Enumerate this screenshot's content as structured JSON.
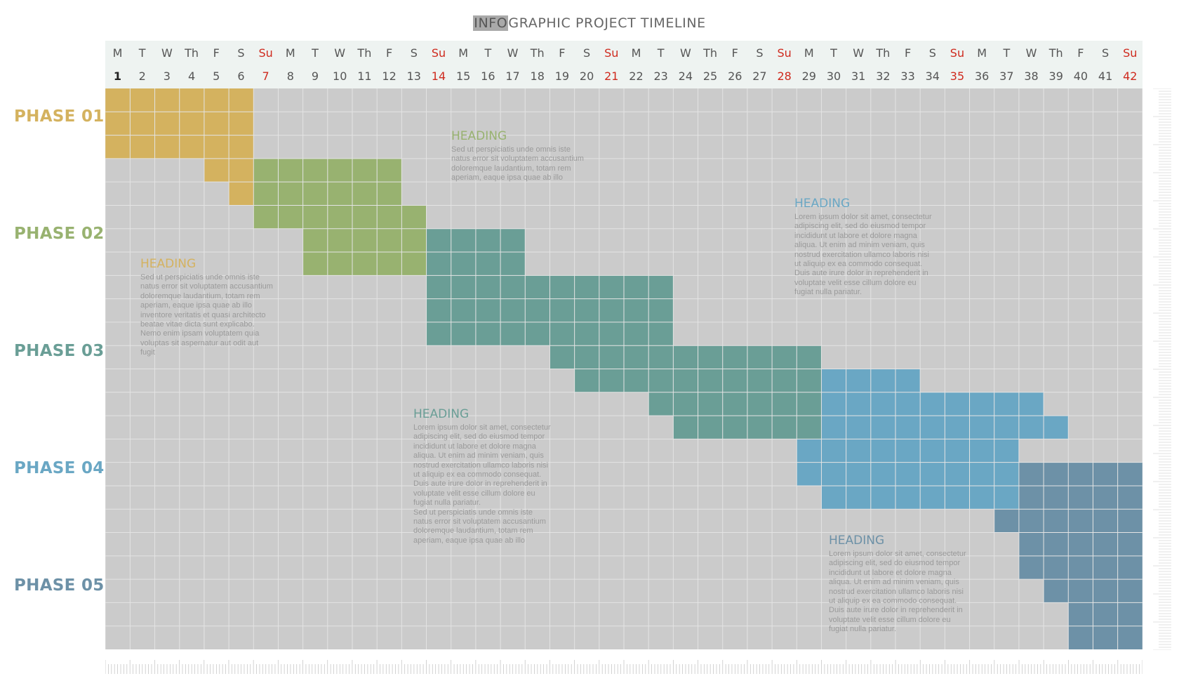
{
  "title": {
    "highlight": "INFO",
    "rest": "GRAPHIC  PROJECT  TIMELINE"
  },
  "days": {
    "names": [
      "M",
      "T",
      "W",
      "Th",
      "F",
      "S",
      "Su",
      "M",
      "T",
      "W",
      "Th",
      "F",
      "S",
      "Su",
      "M",
      "T",
      "W",
      "Th",
      "F",
      "S",
      "Su",
      "M",
      "T",
      "W",
      "Th",
      "F",
      "S",
      "Su",
      "M",
      "T",
      "W",
      "Th",
      "F",
      "S",
      "Su",
      "M",
      "T",
      "W",
      "Th",
      "F",
      "S",
      "Su"
    ],
    "numbers": [
      "1",
      "2",
      "3",
      "4",
      "5",
      "6",
      "7",
      "8",
      "9",
      "10",
      "11",
      "12",
      "13",
      "14",
      "15",
      "16",
      "17",
      "18",
      "19",
      "20",
      "21",
      "22",
      "23",
      "24",
      "25",
      "26",
      "27",
      "28",
      "29",
      "30",
      "31",
      "32",
      "33",
      "34",
      "35",
      "36",
      "37",
      "38",
      "39",
      "40",
      "41",
      "42"
    ]
  },
  "colors": {
    "grid_background": "#cbcbcb",
    "grid_lines": "#e4e4e4",
    "header_background": "#eef3f1",
    "sunday": "#cf2a1e",
    "phase_01": "#d4b25f",
    "phase_02": "#98b270",
    "phase_03": "#6a9e96",
    "phase_04": "#6aa7c4",
    "phase_05": "#6d91a7"
  },
  "phases": [
    {
      "label": "PHASE 01",
      "color": "#d4b25f",
      "bars": [
        {
          "row_start": 1,
          "row_end": 3,
          "day_start": 1,
          "day_end": 6
        },
        {
          "row_start": 4,
          "row_end": 4,
          "day_start": 5,
          "day_end": 6
        },
        {
          "row_start": 5,
          "row_end": 5,
          "day_start": 6,
          "day_end": 6
        }
      ]
    },
    {
      "label": "PHASE 02",
      "color": "#98b270",
      "bars": [
        {
          "row_start": 4,
          "row_end": 5,
          "day_start": 7,
          "day_end": 12
        },
        {
          "row_start": 6,
          "row_end": 6,
          "day_start": 7,
          "day_end": 13
        },
        {
          "row_start": 7,
          "row_end": 8,
          "day_start": 9,
          "day_end": 13
        }
      ]
    },
    {
      "label": "PHASE 03",
      "color": "#6a9e96",
      "bars": [
        {
          "row_start": 7,
          "row_end": 8,
          "day_start": 14,
          "day_end": 17
        },
        {
          "row_start": 9,
          "row_end": 11,
          "day_start": 14,
          "day_end": 23
        },
        {
          "row_start": 12,
          "row_end": 12,
          "day_start": 19,
          "day_end": 29
        },
        {
          "row_start": 13,
          "row_end": 13,
          "day_start": 20,
          "day_end": 29
        },
        {
          "row_start": 14,
          "row_end": 14,
          "day_start": 23,
          "day_end": 29
        },
        {
          "row_start": 15,
          "row_end": 15,
          "day_start": 24,
          "day_end": 29
        }
      ]
    },
    {
      "label": "PHASE 04",
      "color": "#6aa7c4",
      "bars": [
        {
          "row_start": 13,
          "row_end": 13,
          "day_start": 30,
          "day_end": 33
        },
        {
          "row_start": 14,
          "row_end": 14,
          "day_start": 30,
          "day_end": 38
        },
        {
          "row_start": 15,
          "row_end": 15,
          "day_start": 30,
          "day_end": 39
        },
        {
          "row_start": 16,
          "row_end": 17,
          "day_start": 29,
          "day_end": 37
        },
        {
          "row_start": 18,
          "row_end": 18,
          "day_start": 30,
          "day_end": 37
        }
      ]
    },
    {
      "label": "PHASE 05",
      "color": "#6d91a7",
      "bars": [
        {
          "row_start": 17,
          "row_end": 18,
          "day_start": 38,
          "day_end": 42
        },
        {
          "row_start": 19,
          "row_end": 19,
          "day_start": 37,
          "day_end": 42
        },
        {
          "row_start": 20,
          "row_end": 21,
          "day_start": 38,
          "day_end": 42
        },
        {
          "row_start": 22,
          "row_end": 22,
          "day_start": 39,
          "day_end": 42
        },
        {
          "row_start": 23,
          "row_end": 24,
          "day_start": 40,
          "day_end": 42
        }
      ]
    }
  ],
  "notes": [
    {
      "heading": "HEADING",
      "color": "#98b270",
      "body": "Sed ut perspiciatis unde omnis iste\nnatus error sit voluptatem accusantium\ndoloremque laudantium, totam rem\naperiam, eaque ipsa quae ab illo"
    },
    {
      "heading": "HEADING",
      "color": "#6aa7c4",
      "body": "Lorem ipsum dolor sit amet, consectetur\nadipiscing elit, sed do eiusmod tempor\nincididunt ut labore et dolore magna\naliqua. Ut enim ad minim veniam, quis\nnostrud exercitation ullamco laboris nisi\nut aliquip ex ea commodo consequat.\nDuis aute irure dolor in reprehenderit in\nvoluptate velit esse cillum dolore eu\nfugiat nulla pariatur."
    },
    {
      "heading": "HEADING",
      "color": "#d4b25f",
      "body": "Sed ut perspiciatis unde omnis iste\nnatus error sit voluptatem accusantium\ndoloremque laudantium, totam rem\naperiam, eaque ipsa quae ab illo\ninventore veritatis et quasi architecto\nbeatae vitae dicta sunt explicabo.\nNemo enim ipsam voluptatem quia\nvoluptas sit aspernatur aut odit aut\nfugit"
    },
    {
      "heading": "HEADING",
      "color": "#6a9e96",
      "body": "Lorem ipsum dolor sit amet, consectetur\nadipiscing elit, sed do eiusmod tempor\nincididunt ut labore et dolore magna\naliqua. Ut enim ad minim veniam, quis\nnostrud exercitation ullamco laboris nisi\nut aliquip ex ea commodo consequat.\nDuis aute irure dolor in reprehenderit in\nvoluptate velit esse cillum dolore eu\nfugiat nulla pariatur.\nSed ut perspiciatis unde omnis iste\nnatus error sit voluptatem accusantium\ndoloremque laudantium, totam rem\naperiam, eaque ipsa quae ab illo"
    },
    {
      "heading": "HEADING",
      "color": "#6d91a7",
      "body": "Lorem ipsum dolor sit amet, consectetur\nadipiscing elit, sed do eiusmod tempor\nincididunt ut labore et dolore magna\naliqua. Ut enim ad minim veniam, quis\nnostrud exercitation ullamco laboris nisi\nut aliquip ex ea commodo consequat.\nDuis aute irure dolor in reprehenderit in\nvoluptate velit esse cillum dolore eu\nfugiat nulla pariatur."
    }
  ]
}
